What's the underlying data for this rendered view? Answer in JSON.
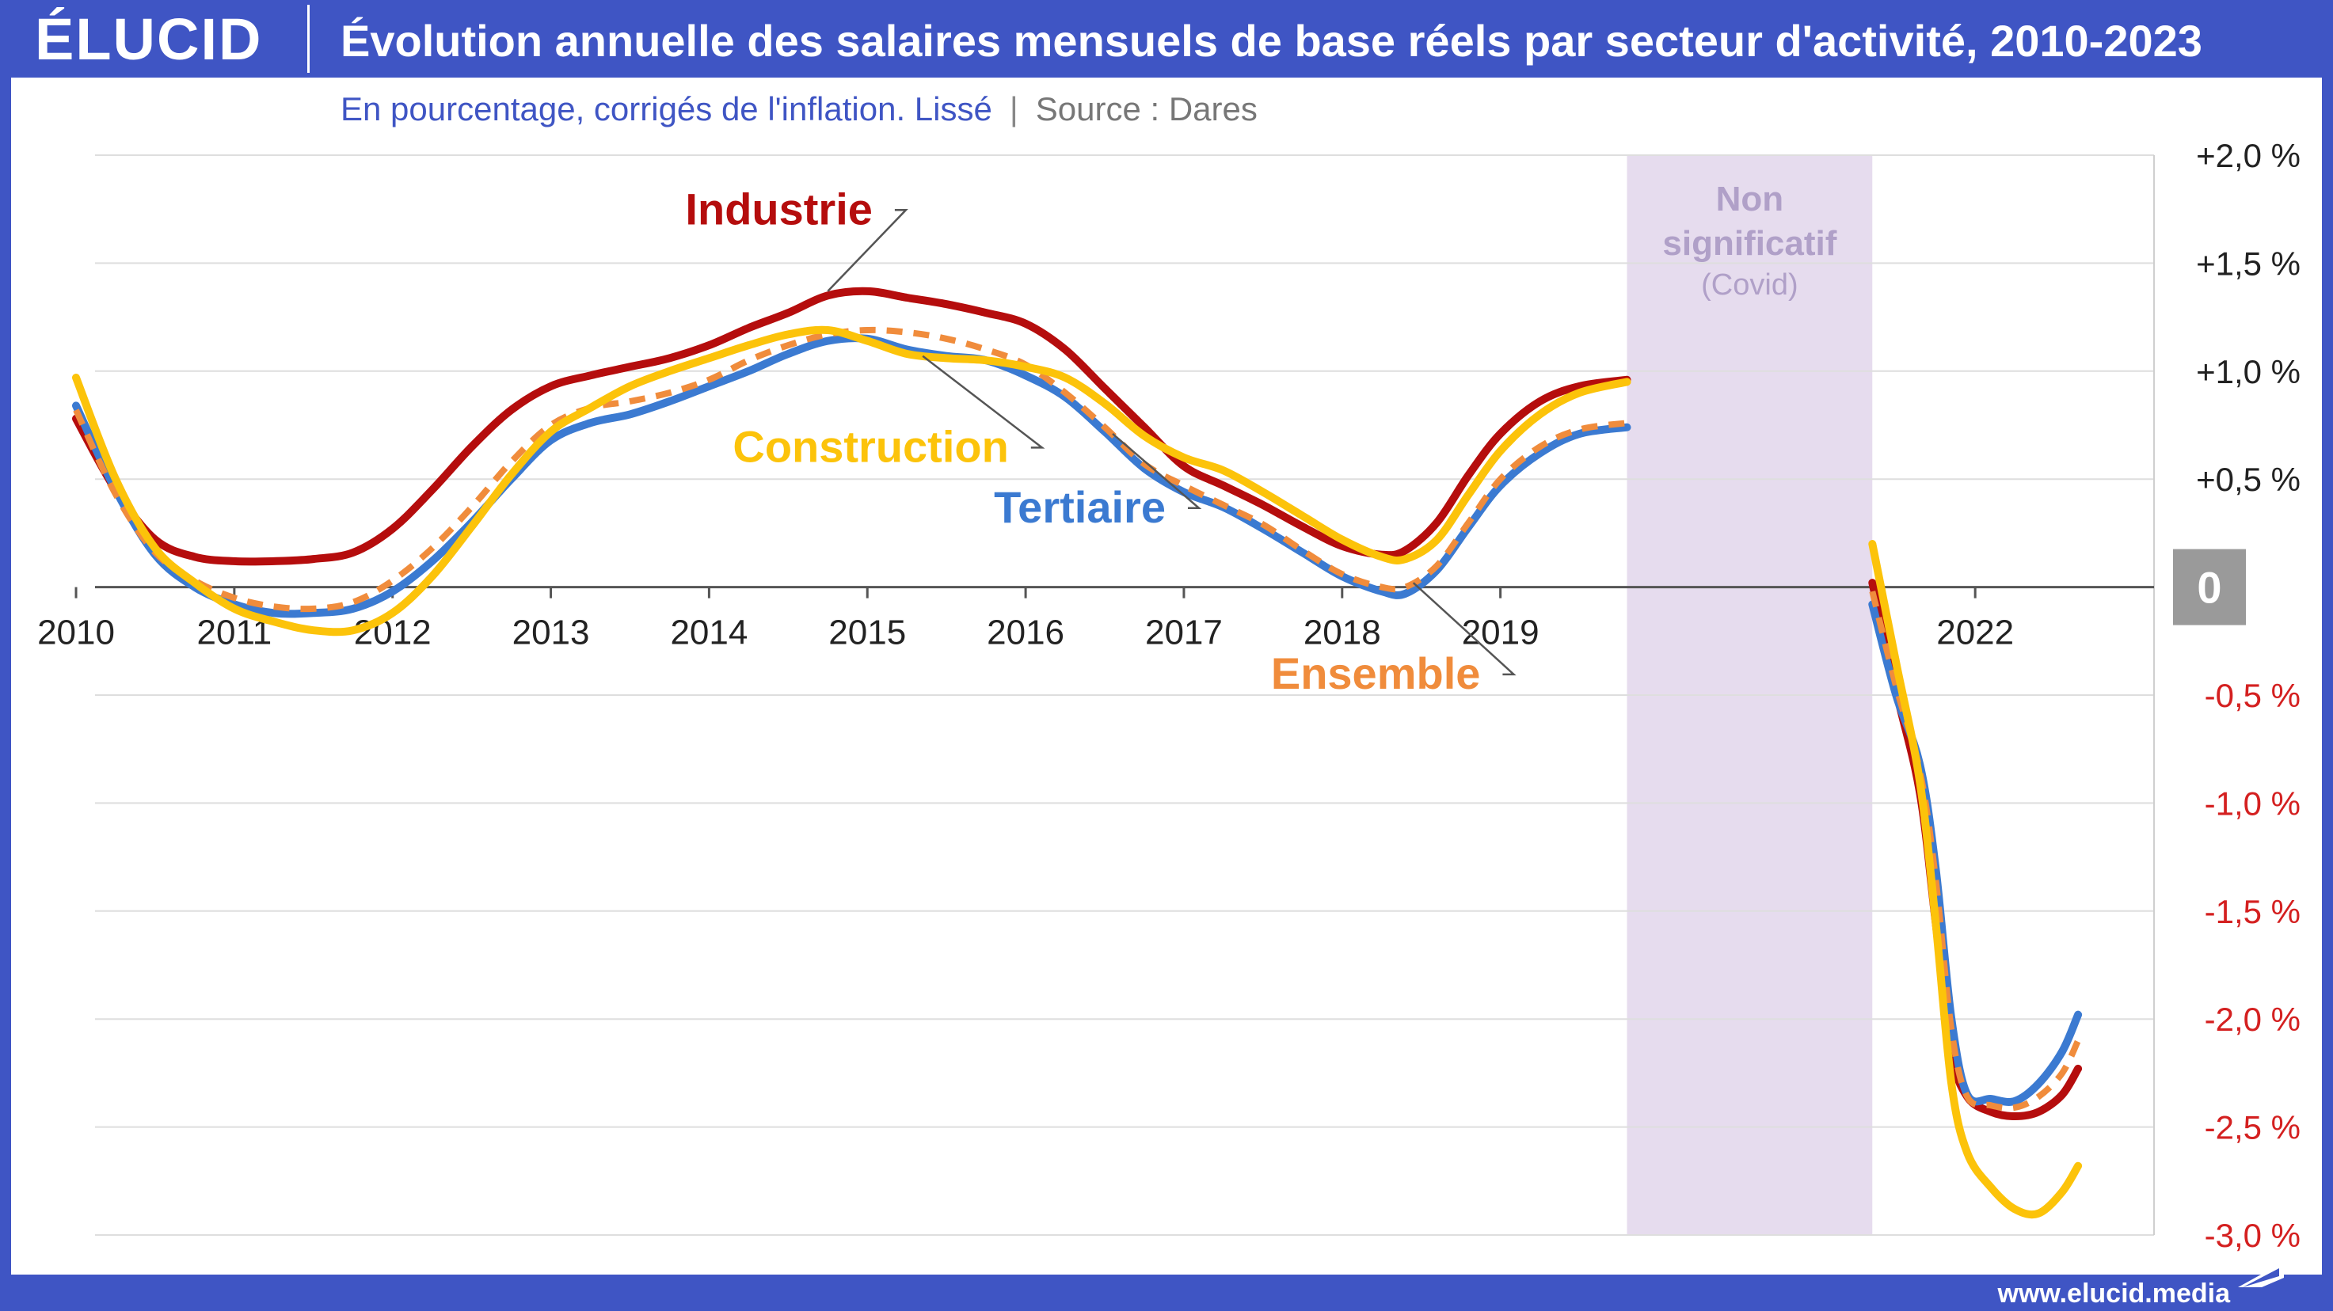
{
  "brand": {
    "logo": "ÉLUCID",
    "url": "www.elucid.media",
    "colors": {
      "primary": "#3f55c4",
      "background": "#ffffff"
    }
  },
  "header": {
    "title": "Évolution annuelle des salaires mensuels de base réels par secteur d'activité, 2010-2023"
  },
  "subtitle": {
    "description": "En pourcentage, corrigés de l'inflation. Lissé",
    "separator": "|",
    "source": "Source : Dares"
  },
  "chart_data": {
    "type": "line",
    "title": "Évolution annuelle des salaires mensuels de base réels par secteur d'activité, 2010-2023",
    "xlabel": "",
    "ylabel": "",
    "xlim": [
      2010,
      2023
    ],
    "ylim": [
      -3.0,
      2.0
    ],
    "grid": true,
    "legend": "inline-labels",
    "x_ticks": [
      {
        "value": 2010,
        "label": "2010"
      },
      {
        "value": 2011,
        "label": "2011"
      },
      {
        "value": 2012,
        "label": "2012"
      },
      {
        "value": 2013,
        "label": "2013"
      },
      {
        "value": 2014,
        "label": "2014"
      },
      {
        "value": 2015,
        "label": "2015"
      },
      {
        "value": 2016,
        "label": "2016"
      },
      {
        "value": 2017,
        "label": "2017"
      },
      {
        "value": 2018,
        "label": "2018"
      },
      {
        "value": 2019,
        "label": "2019"
      },
      {
        "value": 2022,
        "label": "2022"
      }
    ],
    "y_ticks": [
      {
        "value": 2.0,
        "label": "+2,0 %"
      },
      {
        "value": 1.5,
        "label": "+1,5 %"
      },
      {
        "value": 1.0,
        "label": "+1,0 %"
      },
      {
        "value": 0.5,
        "label": "+0,5 %"
      },
      {
        "value": 0,
        "label": "0"
      },
      {
        "value": -0.5,
        "label": "-0,5 %"
      },
      {
        "value": -1.0,
        "label": "-1,0 %"
      },
      {
        "value": -1.5,
        "label": "-1,5 %"
      },
      {
        "value": -2.0,
        "label": "-2,0 %"
      },
      {
        "value": -2.5,
        "label": "-2,5 %"
      },
      {
        "value": -3.0,
        "label": "-3,0 %"
      }
    ],
    "tick_colors": {
      "positive": "#222222",
      "negative": "#d42020",
      "zero_badge": "#9a9a9a"
    },
    "shaded_region": {
      "x": [
        2019.8,
        2021.35
      ],
      "label": "Non significatif",
      "sublabel": "(Covid)",
      "color": "#e6dcee",
      "text_color": "#b0a0c8"
    },
    "series": [
      {
        "name": "Industrie",
        "color": "#b50d0d",
        "dashed": false,
        "segments": [
          [
            [
              2010,
              0.78
            ],
            [
              2010.25,
              0.45
            ],
            [
              2010.5,
              0.22
            ],
            [
              2010.75,
              0.14
            ],
            [
              2011,
              0.12
            ],
            [
              2011.25,
              0.12
            ],
            [
              2011.5,
              0.13
            ],
            [
              2011.75,
              0.16
            ],
            [
              2012,
              0.27
            ],
            [
              2012.25,
              0.45
            ],
            [
              2012.5,
              0.65
            ],
            [
              2012.75,
              0.82
            ],
            [
              2013,
              0.93
            ],
            [
              2013.25,
              0.98
            ],
            [
              2013.5,
              1.02
            ],
            [
              2013.75,
              1.06
            ],
            [
              2014,
              1.12
            ],
            [
              2014.25,
              1.2
            ],
            [
              2014.5,
              1.27
            ],
            [
              2014.75,
              1.35
            ],
            [
              2015,
              1.37
            ],
            [
              2015.25,
              1.34
            ],
            [
              2015.5,
              1.31
            ],
            [
              2015.75,
              1.27
            ],
            [
              2016,
              1.22
            ],
            [
              2016.25,
              1.1
            ],
            [
              2016.5,
              0.92
            ],
            [
              2016.75,
              0.74
            ],
            [
              2017,
              0.56
            ],
            [
              2017.25,
              0.47
            ],
            [
              2017.5,
              0.38
            ],
            [
              2017.75,
              0.28
            ],
            [
              2018,
              0.19
            ],
            [
              2018.25,
              0.15
            ],
            [
              2018.4,
              0.17
            ],
            [
              2018.6,
              0.3
            ],
            [
              2018.8,
              0.52
            ],
            [
              2019,
              0.71
            ],
            [
              2019.25,
              0.86
            ],
            [
              2019.5,
              0.93
            ],
            [
              2019.8,
              0.96
            ]
          ],
          [
            [
              2021.35,
              0.02
            ],
            [
              2021.5,
              -0.48
            ],
            [
              2021.65,
              -0.95
            ],
            [
              2021.75,
              -1.55
            ],
            [
              2021.85,
              -2.15
            ],
            [
              2021.95,
              -2.36
            ],
            [
              2022.1,
              -2.43
            ],
            [
              2022.25,
              -2.45
            ],
            [
              2022.4,
              -2.43
            ],
            [
              2022.55,
              -2.35
            ],
            [
              2022.65,
              -2.23
            ]
          ]
        ]
      },
      {
        "name": "Construction",
        "color": "#fcc30a",
        "dashed": false,
        "segments": [
          [
            [
              2010,
              0.97
            ],
            [
              2010.25,
              0.5
            ],
            [
              2010.5,
              0.18
            ],
            [
              2010.75,
              0.02
            ],
            [
              2011,
              -0.1
            ],
            [
              2011.25,
              -0.16
            ],
            [
              2011.5,
              -0.2
            ],
            [
              2011.75,
              -0.2
            ],
            [
              2012,
              -0.12
            ],
            [
              2012.25,
              0.05
            ],
            [
              2012.5,
              0.28
            ],
            [
              2012.75,
              0.52
            ],
            [
              2013,
              0.72
            ],
            [
              2013.25,
              0.83
            ],
            [
              2013.5,
              0.93
            ],
            [
              2013.75,
              1.0
            ],
            [
              2014,
              1.06
            ],
            [
              2014.25,
              1.12
            ],
            [
              2014.5,
              1.17
            ],
            [
              2014.75,
              1.19
            ],
            [
              2015,
              1.14
            ],
            [
              2015.25,
              1.08
            ],
            [
              2015.5,
              1.06
            ],
            [
              2015.75,
              1.05
            ],
            [
              2016,
              1.02
            ],
            [
              2016.25,
              0.97
            ],
            [
              2016.5,
              0.85
            ],
            [
              2016.75,
              0.7
            ],
            [
              2017,
              0.6
            ],
            [
              2017.25,
              0.54
            ],
            [
              2017.5,
              0.44
            ],
            [
              2017.75,
              0.33
            ],
            [
              2018,
              0.22
            ],
            [
              2018.25,
              0.14
            ],
            [
              2018.4,
              0.13
            ],
            [
              2018.6,
              0.22
            ],
            [
              2018.8,
              0.43
            ],
            [
              2019,
              0.63
            ],
            [
              2019.25,
              0.8
            ],
            [
              2019.5,
              0.9
            ],
            [
              2019.8,
              0.95
            ]
          ],
          [
            [
              2021.35,
              0.2
            ],
            [
              2021.5,
              -0.35
            ],
            [
              2021.65,
              -0.9
            ],
            [
              2021.75,
              -1.55
            ],
            [
              2021.85,
              -2.3
            ],
            [
              2021.95,
              -2.62
            ],
            [
              2022.1,
              -2.78
            ],
            [
              2022.25,
              -2.88
            ],
            [
              2022.4,
              -2.9
            ],
            [
              2022.55,
              -2.8
            ],
            [
              2022.65,
              -2.68
            ]
          ]
        ]
      },
      {
        "name": "Tertiaire",
        "color": "#3b7ad1",
        "dashed": false,
        "segments": [
          [
            [
              2010,
              0.84
            ],
            [
              2010.25,
              0.45
            ],
            [
              2010.5,
              0.15
            ],
            [
              2010.75,
              0.0
            ],
            [
              2011,
              -0.08
            ],
            [
              2011.25,
              -0.12
            ],
            [
              2011.5,
              -0.12
            ],
            [
              2011.75,
              -0.1
            ],
            [
              2012,
              -0.02
            ],
            [
              2012.25,
              0.12
            ],
            [
              2012.5,
              0.3
            ],
            [
              2012.75,
              0.5
            ],
            [
              2013,
              0.68
            ],
            [
              2013.25,
              0.76
            ],
            [
              2013.5,
              0.8
            ],
            [
              2013.75,
              0.86
            ],
            [
              2014,
              0.93
            ],
            [
              2014.25,
              1.0
            ],
            [
              2014.5,
              1.08
            ],
            [
              2014.75,
              1.14
            ],
            [
              2015,
              1.15
            ],
            [
              2015.25,
              1.1
            ],
            [
              2015.5,
              1.07
            ],
            [
              2015.75,
              1.05
            ],
            [
              2016,
              0.98
            ],
            [
              2016.25,
              0.88
            ],
            [
              2016.5,
              0.72
            ],
            [
              2016.75,
              0.55
            ],
            [
              2017,
              0.44
            ],
            [
              2017.25,
              0.37
            ],
            [
              2017.5,
              0.27
            ],
            [
              2017.75,
              0.16
            ],
            [
              2018,
              0.05
            ],
            [
              2018.25,
              -0.02
            ],
            [
              2018.4,
              -0.03
            ],
            [
              2018.6,
              0.08
            ],
            [
              2018.8,
              0.28
            ],
            [
              2019,
              0.47
            ],
            [
              2019.25,
              0.62
            ],
            [
              2019.5,
              0.71
            ],
            [
              2019.8,
              0.74
            ]
          ],
          [
            [
              2021.35,
              -0.08
            ],
            [
              2021.5,
              -0.5
            ],
            [
              2021.65,
              -0.82
            ],
            [
              2021.75,
              -1.3
            ],
            [
              2021.85,
              -2.0
            ],
            [
              2021.95,
              -2.35
            ],
            [
              2022.1,
              -2.37
            ],
            [
              2022.25,
              -2.38
            ],
            [
              2022.4,
              -2.3
            ],
            [
              2022.55,
              -2.15
            ],
            [
              2022.65,
              -1.98
            ]
          ]
        ]
      },
      {
        "name": "Ensemble",
        "color": "#f08c3c",
        "dashed": true,
        "segments": [
          [
            [
              2010,
              0.82
            ],
            [
              2010.25,
              0.43
            ],
            [
              2010.5,
              0.16
            ],
            [
              2010.75,
              0.03
            ],
            [
              2011,
              -0.05
            ],
            [
              2011.25,
              -0.09
            ],
            [
              2011.5,
              -0.1
            ],
            [
              2011.75,
              -0.07
            ],
            [
              2012,
              0.03
            ],
            [
              2012.25,
              0.18
            ],
            [
              2012.5,
              0.37
            ],
            [
              2012.75,
              0.58
            ],
            [
              2013,
              0.75
            ],
            [
              2013.25,
              0.83
            ],
            [
              2013.5,
              0.86
            ],
            [
              2013.75,
              0.9
            ],
            [
              2014,
              0.96
            ],
            [
              2014.25,
              1.05
            ],
            [
              2014.5,
              1.12
            ],
            [
              2014.75,
              1.17
            ],
            [
              2015,
              1.19
            ],
            [
              2015.25,
              1.18
            ],
            [
              2015.5,
              1.15
            ],
            [
              2015.75,
              1.1
            ],
            [
              2016,
              1.03
            ],
            [
              2016.25,
              0.9
            ],
            [
              2016.5,
              0.74
            ],
            [
              2016.75,
              0.57
            ],
            [
              2017,
              0.47
            ],
            [
              2017.25,
              0.38
            ],
            [
              2017.5,
              0.29
            ],
            [
              2017.75,
              0.17
            ],
            [
              2018,
              0.06
            ],
            [
              2018.25,
              0.0
            ],
            [
              2018.4,
              0.0
            ],
            [
              2018.6,
              0.1
            ],
            [
              2018.8,
              0.3
            ],
            [
              2019,
              0.5
            ],
            [
              2019.25,
              0.65
            ],
            [
              2019.5,
              0.73
            ],
            [
              2019.8,
              0.76
            ]
          ],
          [
            [
              2021.35,
              -0.02
            ],
            [
              2021.5,
              -0.46
            ],
            [
              2021.65,
              -0.85
            ],
            [
              2021.75,
              -1.35
            ],
            [
              2021.85,
              -2.05
            ],
            [
              2021.95,
              -2.36
            ],
            [
              2022.1,
              -2.4
            ],
            [
              2022.25,
              -2.41
            ],
            [
              2022.4,
              -2.36
            ],
            [
              2022.55,
              -2.25
            ],
            [
              2022.65,
              -2.1
            ]
          ]
        ]
      }
    ],
    "annotations": [
      {
        "series": "Industrie",
        "text": "Industrie",
        "color": "#b50d0d",
        "label_at": [
          2013.85,
          1.68
        ],
        "points_to": [
          2014.75,
          1.37
        ]
      },
      {
        "series": "Construction",
        "text": "Construction",
        "color": "#fcc30a",
        "label_at": [
          2014.15,
          0.58
        ],
        "points_to": [
          2015.35,
          1.07
        ]
      },
      {
        "series": "Tertiaire",
        "text": "Tertiaire",
        "color": "#3b7ad1",
        "label_at": [
          2015.8,
          0.3
        ],
        "points_to": [
          2016.55,
          0.71
        ]
      },
      {
        "series": "Ensemble",
        "text": "Ensemble",
        "color": "#f08c3c",
        "label_at": [
          2017.55,
          -0.47
        ],
        "points_to": [
          2018.45,
          0.02
        ]
      }
    ]
  }
}
